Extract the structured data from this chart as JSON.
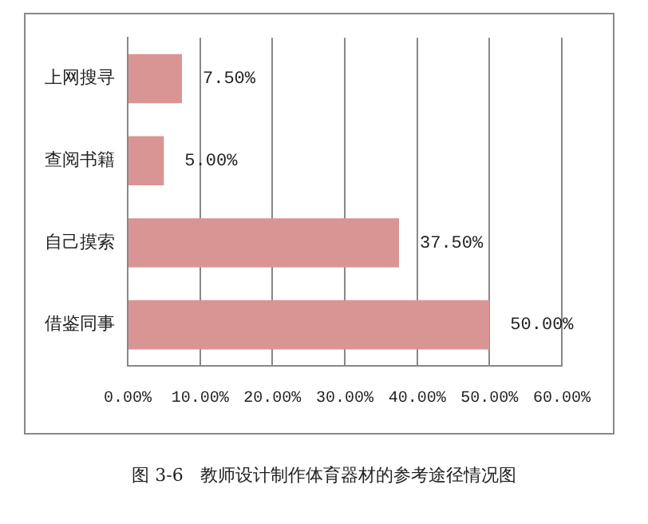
{
  "chart_data": {
    "type": "bar",
    "orientation": "horizontal",
    "categories": [
      "上网搜寻",
      "查阅书籍",
      "自己摸索",
      "借鉴同事"
    ],
    "values": [
      7.5,
      5,
      37.5,
      50
    ],
    "value_labels": [
      "7.50%",
      "5.00%",
      "37.50%",
      "50.00%"
    ],
    "color": "#d99594",
    "xlim": [
      0,
      60
    ],
    "xticks": [
      {
        "value": 0,
        "label": "0.00%"
      },
      {
        "value": 10,
        "label": "10.00%"
      },
      {
        "value": 20,
        "label": "20.00%"
      },
      {
        "value": 30,
        "label": "30.00%"
      },
      {
        "value": 40,
        "label": "40.00%"
      },
      {
        "value": 50,
        "label": "50.00%"
      },
      {
        "value": 60,
        "label": "60.00%"
      }
    ],
    "grid": "x",
    "legend": false,
    "annotations": [
      "图 3-6   教师设计制作体育器材的参考途径情况图"
    ]
  }
}
